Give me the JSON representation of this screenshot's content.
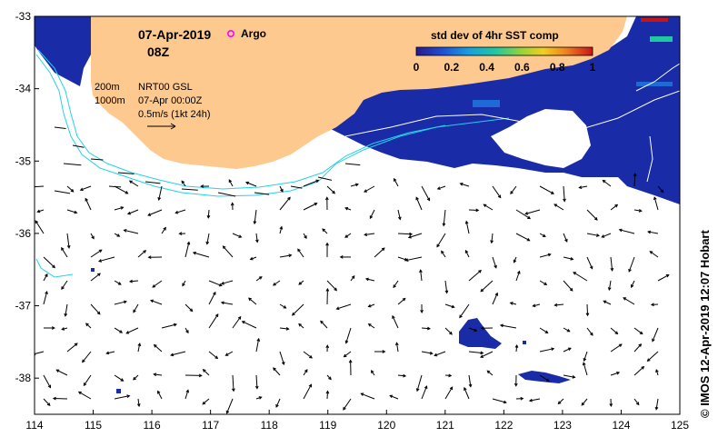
{
  "map": {
    "date": "07-Apr-2019",
    "time": "08Z",
    "argo_legend": "Argo",
    "isobath_200": "200m",
    "isobath_1000": "1000m",
    "product": "NRT00 GSL",
    "product_time": "07-Apr 00:00Z",
    "scale_label": "0.5m/s (1kt 24h)",
    "colorbar_title": "std dev of 4hr SST comp",
    "colorbar_ticks": [
      "0",
      "0.2",
      "0.4",
      "0.6",
      "0.8",
      "1"
    ],
    "credit": "© IMOS 12-Apr-2019 12:07 Hobart",
    "lon_range": [
      114,
      125
    ],
    "lat_range": [
      -38.5,
      -33
    ],
    "lon_ticks": [
      "114",
      "115",
      "116",
      "117",
      "118",
      "119",
      "120",
      "121",
      "122",
      "123",
      "124",
      "125"
    ],
    "lat_ticks": [
      "-33",
      "-34",
      "-35",
      "-36",
      "-37",
      "-38"
    ],
    "colors": {
      "land": "#fdc98e",
      "sst_dark": "#1a2ba8",
      "sst_mid": "#1f6ad6",
      "isobath": "#22d3e6",
      "argo": "#ff00ff"
    }
  }
}
